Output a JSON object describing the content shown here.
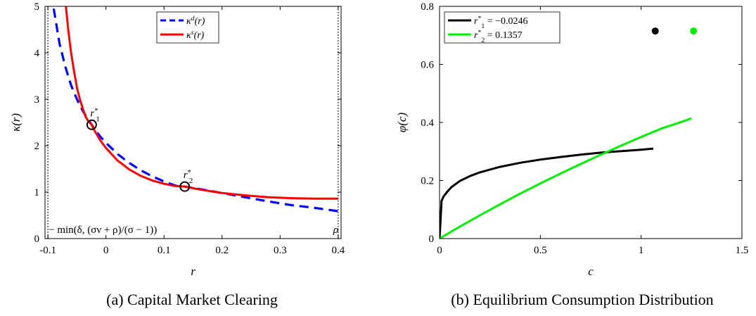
{
  "chart_data": [
    {
      "type": "line",
      "caption": "(a) Capital Market Clearing",
      "xlabel": "r",
      "ylabel": "κ(r)",
      "xlim": [
        -0.105,
        0.405
      ],
      "ylim": [
        0,
        5
      ],
      "xticks": [
        -0.1,
        0,
        0.1,
        0.2,
        0.3,
        0.4
      ],
      "xtick_labels": [
        "-0.1",
        "0",
        "0.1",
        "0.2",
        "0.3",
        "0.4"
      ],
      "yticks": [
        0,
        1,
        2,
        3,
        4,
        5
      ],
      "ytick_labels": [
        "0",
        "1",
        "2",
        "3",
        "4",
        "5"
      ],
      "legend_position": "top-center",
      "series": [
        {
          "name": "κ^d(r)",
          "legend_base": "κ",
          "legend_sup": "d",
          "legend_tail": "(r)",
          "color": "#0000ff",
          "style": "dashed",
          "x": [
            -0.09,
            -0.08,
            -0.07,
            -0.06,
            -0.05,
            -0.04,
            -0.03,
            -0.0246,
            -0.02,
            -0.01,
            0,
            0.02,
            0.04,
            0.06,
            0.08,
            0.1,
            0.12,
            0.1357,
            0.16,
            0.2,
            0.24,
            0.28,
            0.32,
            0.36,
            0.4
          ],
          "y": [
            4.95,
            4.2,
            3.7,
            3.3,
            3.0,
            2.75,
            2.55,
            2.45,
            2.36,
            2.2,
            2.06,
            1.82,
            1.63,
            1.47,
            1.34,
            1.23,
            1.14,
            1.12,
            1.07,
            0.98,
            0.89,
            0.8,
            0.72,
            0.66,
            0.59
          ]
        },
        {
          "name": "κ^s(r)",
          "legend_base": "κ",
          "legend_sup": "s",
          "legend_tail": "(r)",
          "color": "#ff0000",
          "style": "solid",
          "x": [
            -0.069,
            -0.065,
            -0.06,
            -0.055,
            -0.05,
            -0.045,
            -0.04,
            -0.035,
            -0.03,
            -0.0246,
            -0.02,
            -0.01,
            0,
            0.02,
            0.04,
            0.06,
            0.08,
            0.1,
            0.12,
            0.1357,
            0.16,
            0.2,
            0.24,
            0.28,
            0.32,
            0.36,
            0.4
          ],
          "y": [
            5.0,
            4.5,
            4.0,
            3.6,
            3.25,
            3.0,
            2.8,
            2.62,
            2.52,
            2.45,
            2.33,
            2.12,
            1.95,
            1.68,
            1.49,
            1.35,
            1.25,
            1.18,
            1.13,
            1.12,
            1.06,
            0.98,
            0.93,
            0.89,
            0.87,
            0.86,
            0.86
          ]
        }
      ],
      "markers": [
        {
          "label_base": "r",
          "label_sup": "*",
          "label_sub": "1",
          "x": -0.0246,
          "y": 2.45
        },
        {
          "label_base": "r",
          "label_sup": "*",
          "label_sub": "2",
          "x": 0.1357,
          "y": 1.12
        }
      ],
      "vlines": [
        {
          "x": -0.1,
          "label": "− min(δ, (σν + ρ)/(σ − 1))"
        },
        {
          "x": 0.4,
          "label": "ρ"
        }
      ]
    },
    {
      "type": "line",
      "caption": "(b) Equilibrium Consumption Distribution",
      "xlabel": "c",
      "ylabel": "φ(c)",
      "xlim": [
        0,
        1.5
      ],
      "ylim": [
        0,
        0.8
      ],
      "xticks": [
        0,
        0.5,
        1,
        1.5
      ],
      "xtick_labels": [
        "0",
        "0.5",
        "1",
        "1.5"
      ],
      "yticks": [
        0,
        0.2,
        0.4,
        0.6,
        0.8
      ],
      "ytick_labels": [
        "0",
        "0.2",
        "0.4",
        "0.6",
        "0.8"
      ],
      "legend_position": "top-left",
      "series": [
        {
          "name": "r1* = −0.0246",
          "legend_base": "r",
          "legend_sup": "*",
          "legend_sub": "1",
          "legend_tail": " = −0.0246",
          "color": "#000000",
          "style": "solid",
          "x": [
            0,
            0.01,
            0.02,
            0.04,
            0.06,
            0.1,
            0.15,
            0.2,
            0.3,
            0.4,
            0.5,
            0.6,
            0.7,
            0.8,
            0.9,
            1.0,
            1.06
          ],
          "y": [
            0,
            0.13,
            0.145,
            0.163,
            0.178,
            0.198,
            0.215,
            0.228,
            0.247,
            0.261,
            0.272,
            0.281,
            0.289,
            0.296,
            0.301,
            0.306,
            0.31
          ],
          "point": {
            "x": 1.07,
            "y": 0.715
          }
        },
        {
          "name": "r2* = 0.1357",
          "legend_base": "r",
          "legend_sup": "*",
          "legend_sub": "2",
          "legend_tail": " = 0.1357",
          "color": "#00ee00",
          "style": "solid",
          "x": [
            0,
            0.1,
            0.2,
            0.3,
            0.4,
            0.5,
            0.6,
            0.7,
            0.8,
            0.9,
            1.0,
            1.1,
            1.2,
            1.25
          ],
          "y": [
            0,
            0.041,
            0.08,
            0.118,
            0.155,
            0.19,
            0.224,
            0.257,
            0.289,
            0.32,
            0.35,
            0.379,
            0.402,
            0.414
          ],
          "point": {
            "x": 1.26,
            "y": 0.715
          }
        }
      ]
    }
  ]
}
